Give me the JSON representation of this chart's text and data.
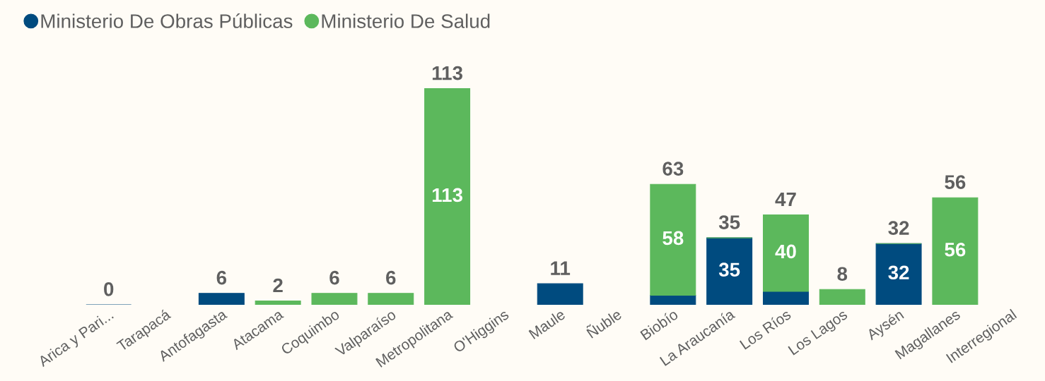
{
  "chart_data": {
    "type": "bar",
    "stacked": true,
    "legend": "top left",
    "grid": false,
    "tick_labels": "x",
    "categories": [
      "Arica y Pari...",
      "Tarapacá",
      "Antofagasta",
      "Atacama",
      "Coquimbo",
      "Valparaíso",
      "Metropolitana",
      "O'Higgins",
      "Maule",
      "Ñuble",
      "Biobío",
      "La Araucanía",
      "Los Ríos",
      "Los Lagos",
      "Aysén",
      "Magallanes",
      "Interregional"
    ],
    "series": [
      {
        "name": "Ministerio De Obras Públicas",
        "color": "#004b7f",
        "values": [
          0,
          null,
          6,
          null,
          null,
          null,
          null,
          null,
          11,
          null,
          5,
          35,
          7,
          0,
          32,
          null,
          null
        ],
        "value_labels": [
          null,
          null,
          null,
          null,
          null,
          null,
          null,
          null,
          null,
          null,
          null,
          "35",
          null,
          null,
          "32",
          null,
          null
        ]
      },
      {
        "name": "Ministerio De Salud",
        "color": "#5cb85c",
        "values": [
          null,
          null,
          null,
          2,
          6,
          6,
          113,
          null,
          null,
          null,
          58,
          0,
          40,
          8,
          0,
          56,
          null
        ],
        "value_labels": [
          null,
          null,
          null,
          null,
          null,
          null,
          "113",
          null,
          null,
          null,
          "58",
          null,
          "40",
          null,
          null,
          "56",
          null
        ]
      }
    ],
    "totals": [
      "0",
      null,
      "6",
      "2",
      "6",
      "6",
      "113",
      null,
      "11",
      null,
      "63",
      "35",
      "47",
      "8",
      "32",
      "56",
      null
    ]
  }
}
